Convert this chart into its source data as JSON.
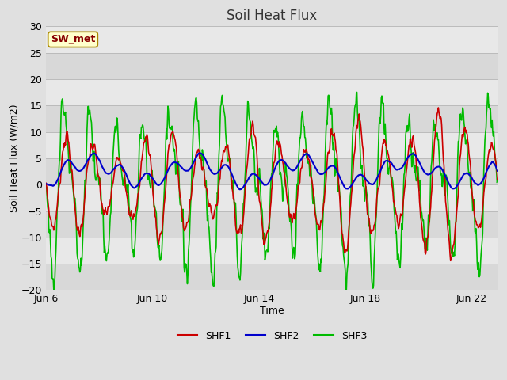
{
  "title": "Soil Heat Flux",
  "xlabel": "Time",
  "ylabel": "Soil Heat Flux (W/m2)",
  "ylim": [
    -20,
    30
  ],
  "xlim_days": [
    0,
    17.0
  ],
  "x_ticks_days": [
    0,
    4,
    8,
    12,
    16
  ],
  "x_tick_labels": [
    "Jun 6",
    "Jun 10",
    "Jun 14",
    "Jun 18",
    "Jun 22"
  ],
  "y_ticks": [
    -20,
    -15,
    -10,
    -5,
    0,
    5,
    10,
    15,
    20,
    25,
    30
  ],
  "line_colors": {
    "SHF1": "#cc0000",
    "SHF2": "#0000cc",
    "SHF3": "#00bb00"
  },
  "line_widths": {
    "SHF1": 1.2,
    "SHF2": 1.5,
    "SHF3": 1.2
  },
  "bg_color": "#e0e0e0",
  "plot_bg_light": "#dcdcdc",
  "plot_bg_dark": "#c8c8c8",
  "grid_color": "#cccccc",
  "annotation_text": "SW_met",
  "annotation_bg": "#ffffcc",
  "annotation_border": "#aa8800",
  "annotation_text_color": "#880000",
  "fig_width": 6.4,
  "fig_height": 4.8,
  "dpi": 100,
  "title_fontsize": 12,
  "axis_label_fontsize": 9,
  "tick_fontsize": 9
}
